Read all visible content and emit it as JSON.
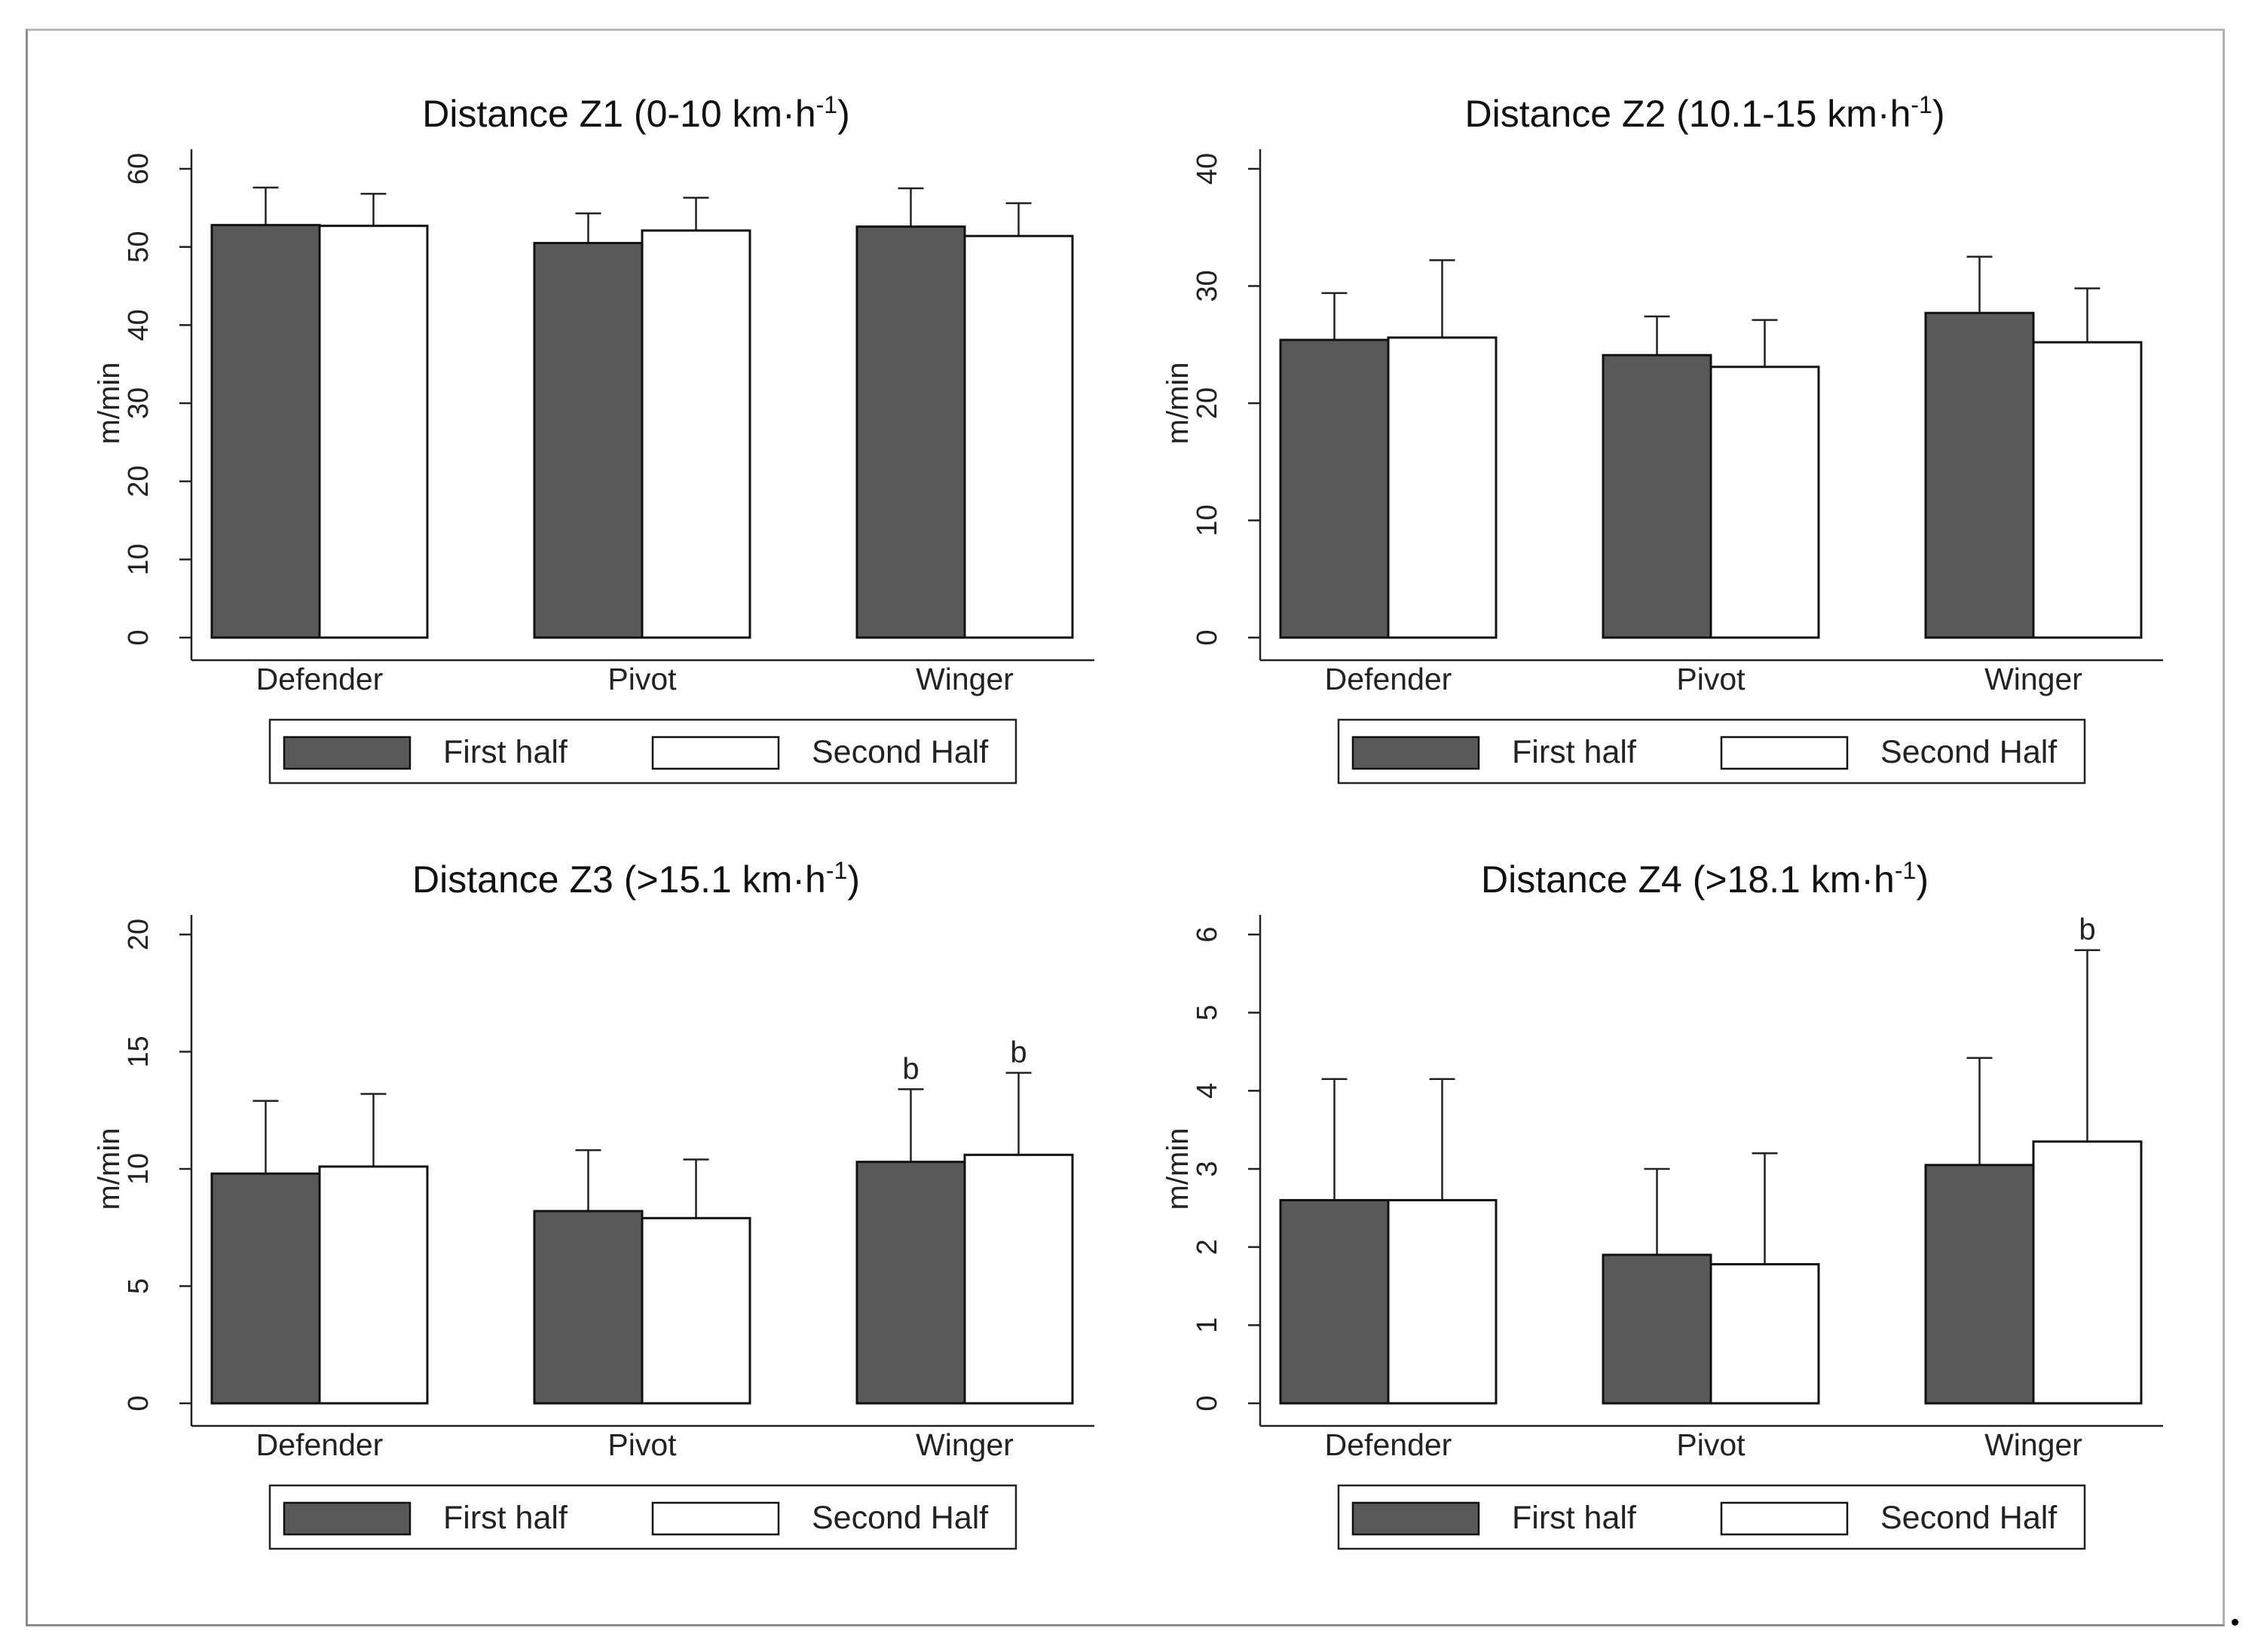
{
  "chart_data": [
    {
      "type": "bar",
      "title": "Distance Z1 (0-10 km·h",
      "title_sup": "-1",
      "title_end": ")",
      "ylabel": "m/min",
      "ylim": [
        0,
        60
      ],
      "yticks": [
        "0",
        "10",
        "20",
        "30",
        "40",
        "50",
        "60"
      ],
      "categories": [
        "Defender",
        "Pivot",
        "Winger"
      ],
      "series": [
        {
          "name": "First half",
          "values": [
            52.8,
            50.5,
            52.6
          ],
          "errors": [
            4.8,
            3.8,
            4.9
          ],
          "color": "#595959"
        },
        {
          "name": "Second Half",
          "values": [
            52.7,
            52.1,
            51.4
          ],
          "errors": [
            4.1,
            4.2,
            4.2
          ],
          "color": "#ffffff"
        }
      ],
      "annotations": [],
      "legend": {
        "position": "bottom",
        "items": [
          "First half",
          "Second Half"
        ]
      },
      "grid": false
    },
    {
      "type": "bar",
      "title": "Distance Z2 (10.1-15 km·h",
      "title_sup": "-1",
      "title_end": ")",
      "ylabel": "m/min",
      "ylim": [
        0,
        40
      ],
      "yticks": [
        "0",
        "10",
        "20",
        "30",
        "40"
      ],
      "categories": [
        "Defender",
        "Pivot",
        "Winger"
      ],
      "series": [
        {
          "name": "First half",
          "values": [
            25.4,
            24.1,
            27.7
          ],
          "errors": [
            4.0,
            3.3,
            4.8
          ],
          "color": "#595959"
        },
        {
          "name": "Second Half",
          "values": [
            25.6,
            23.1,
            25.2
          ],
          "errors": [
            6.6,
            4.0,
            4.6
          ],
          "color": "#ffffff"
        }
      ],
      "annotations": [],
      "legend": {
        "position": "bottom",
        "items": [
          "First half",
          "Second Half"
        ]
      },
      "grid": false
    },
    {
      "type": "bar",
      "title": "Distance Z3 (>15.1 km·h",
      "title_sup": "-1",
      "title_end": ")",
      "ylabel": "m/min",
      "ylim": [
        0,
        20
      ],
      "yticks": [
        "0",
        "5",
        "10",
        "15",
        "20"
      ],
      "categories": [
        "Defender",
        "Pivot",
        "Winger"
      ],
      "series": [
        {
          "name": "First half",
          "values": [
            9.8,
            8.2,
            10.3
          ],
          "errors": [
            3.1,
            2.6,
            3.1
          ],
          "color": "#595959"
        },
        {
          "name": "Second Half",
          "values": [
            10.1,
            7.9,
            10.6
          ],
          "errors": [
            3.1,
            2.5,
            3.5
          ],
          "color": "#ffffff"
        }
      ],
      "annotations": [
        {
          "category": "Winger",
          "series": "First half",
          "text": "b"
        },
        {
          "category": "Winger",
          "series": "Second Half",
          "text": "b"
        }
      ],
      "legend": {
        "position": "bottom",
        "items": [
          "First half",
          "Second Half"
        ]
      },
      "grid": false
    },
    {
      "type": "bar",
      "title": "Distance Z4 (>18.1 km·h",
      "title_sup": "-1",
      "title_end": ")",
      "ylabel": "m/min",
      "ylim": [
        0,
        6
      ],
      "yticks": [
        "0",
        "1",
        "2",
        "3",
        "4",
        "5",
        "6"
      ],
      "categories": [
        "Defender",
        "Pivot",
        "Winger"
      ],
      "series": [
        {
          "name": "First half",
          "values": [
            2.6,
            1.9,
            3.05
          ],
          "errors": [
            1.55,
            1.1,
            1.37
          ],
          "color": "#595959"
        },
        {
          "name": "Second Half",
          "values": [
            2.6,
            1.78,
            3.35
          ],
          "errors": [
            1.55,
            1.42,
            2.45
          ],
          "color": "#ffffff"
        }
      ],
      "annotations": [
        {
          "category": "Winger",
          "series": "Second Half",
          "text": "b"
        }
      ],
      "legend": {
        "position": "bottom",
        "items": [
          "First half",
          "Second Half"
        ]
      },
      "grid": false
    }
  ]
}
